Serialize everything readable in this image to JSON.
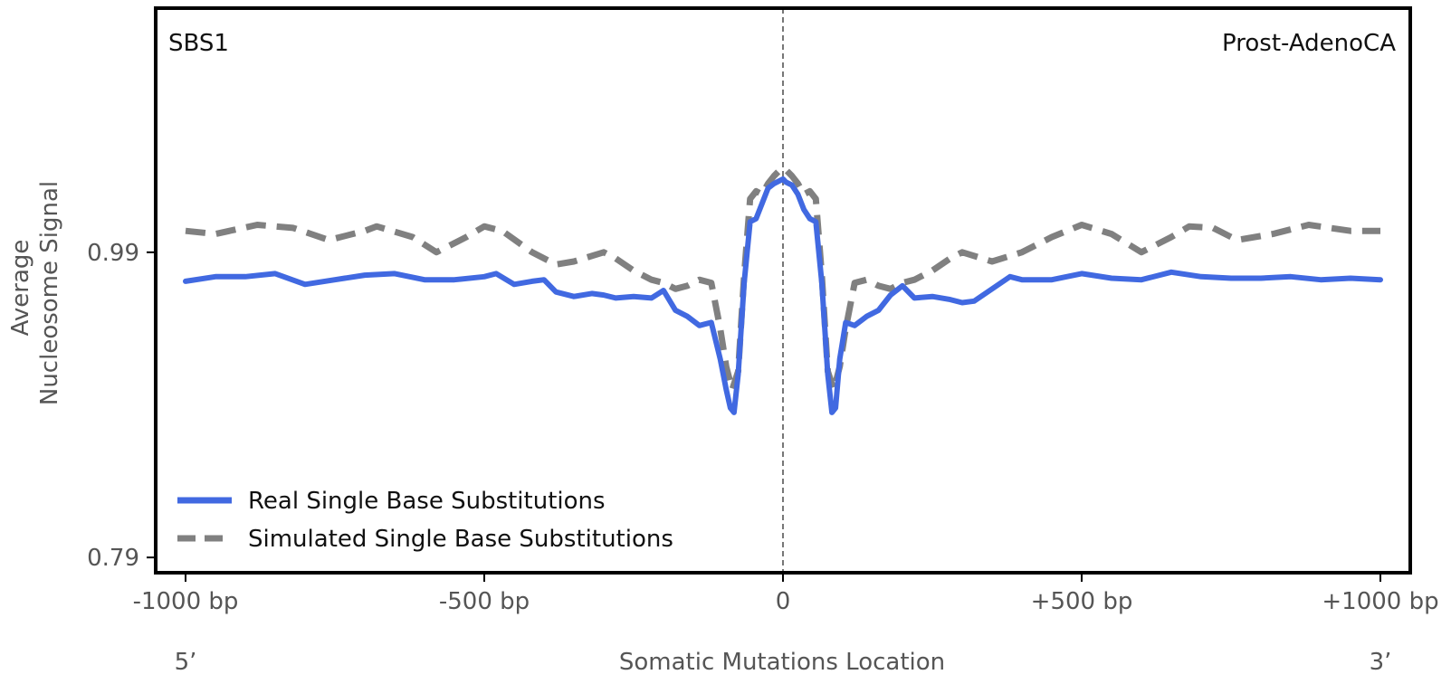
{
  "chart_data": {
    "type": "line",
    "top_left_label": "SBS1",
    "top_right_label": "Prost-AdenoCA",
    "xlabel": "Somatic Mutations Location",
    "ylabel": [
      "Average",
      "Nucleosome Signal"
    ],
    "x_end_labels": {
      "left": "5’",
      "right": "3’"
    },
    "xlim": [
      -1050,
      1050
    ],
    "ylim": [
      0.78,
      1.15
    ],
    "x_ticks": [
      {
        "value": -1000,
        "label": "-1000 bp"
      },
      {
        "value": -500,
        "label": "-500 bp"
      },
      {
        "value": 0,
        "label": "0"
      },
      {
        "value": 500,
        "label": "+500 bp"
      },
      {
        "value": 1000,
        "label": "+1000 bp"
      }
    ],
    "y_ticks": [
      {
        "value": 0.79,
        "label": "0.79"
      },
      {
        "value": 0.99,
        "label": "0.99"
      }
    ],
    "vline_x": 0,
    "legend": {
      "position": "lower-left"
    },
    "series": [
      {
        "name": "Real Single Base Substitutions",
        "color": "#4169e1",
        "style": "solid",
        "x": [
          -1000,
          -950,
          -900,
          -850,
          -800,
          -750,
          -700,
          -650,
          -600,
          -550,
          -500,
          -480,
          -450,
          -420,
          -400,
          -380,
          -350,
          -320,
          -300,
          -280,
          -250,
          -220,
          -200,
          -180,
          -160,
          -140,
          -120,
          -105,
          -95,
          -88,
          -82,
          -75,
          -65,
          -55,
          -45,
          -35,
          -25,
          -15,
          -5,
          0,
          5,
          15,
          25,
          35,
          45,
          55,
          65,
          75,
          82,
          88,
          95,
          105,
          120,
          140,
          160,
          180,
          200,
          220,
          250,
          280,
          300,
          320,
          350,
          380,
          400,
          450,
          500,
          550,
          600,
          650,
          700,
          750,
          800,
          850,
          900,
          950,
          1000
        ],
        "y": [
          0.971,
          0.974,
          0.974,
          0.976,
          0.969,
          0.972,
          0.975,
          0.976,
          0.972,
          0.972,
          0.974,
          0.976,
          0.969,
          0.971,
          0.972,
          0.964,
          0.961,
          0.963,
          0.962,
          0.96,
          0.961,
          0.96,
          0.965,
          0.952,
          0.948,
          0.942,
          0.944,
          0.92,
          0.9,
          0.888,
          0.885,
          0.91,
          0.97,
          1.01,
          1.012,
          1.022,
          1.032,
          1.035,
          1.037,
          1.038,
          1.036,
          1.034,
          1.028,
          1.018,
          1.012,
          1.01,
          0.97,
          0.91,
          0.885,
          0.888,
          0.92,
          0.944,
          0.942,
          0.948,
          0.952,
          0.962,
          0.968,
          0.96,
          0.961,
          0.959,
          0.957,
          0.958,
          0.966,
          0.974,
          0.972,
          0.972,
          0.976,
          0.973,
          0.972,
          0.977,
          0.974,
          0.973,
          0.973,
          0.974,
          0.972,
          0.973,
          0.972
        ]
      },
      {
        "name": "Simulated Single Base Substitutions",
        "color": "#808080",
        "style": "dashed",
        "x": [
          -1000,
          -950,
          -880,
          -820,
          -760,
          -700,
          -680,
          -620,
          -580,
          -530,
          -500,
          -470,
          -420,
          -380,
          -350,
          -300,
          -280,
          -250,
          -220,
          -200,
          -180,
          -160,
          -140,
          -120,
          -105,
          -95,
          -85,
          -75,
          -65,
          -55,
          -45,
          -35,
          -25,
          -15,
          -5,
          0,
          5,
          15,
          25,
          35,
          45,
          55,
          65,
          75,
          85,
          95,
          105,
          120,
          140,
          160,
          180,
          200,
          220,
          250,
          280,
          300,
          350,
          400,
          450,
          500,
          550,
          600,
          650,
          680,
          720,
          760,
          820,
          880,
          950,
          1000
        ],
        "y": [
          1.004,
          1.002,
          1.008,
          1.006,
          0.998,
          1.004,
          1.007,
          1.0,
          0.99,
          1.0,
          1.007,
          1.004,
          0.99,
          0.982,
          0.984,
          0.99,
          0.986,
          0.978,
          0.972,
          0.97,
          0.966,
          0.968,
          0.972,
          0.97,
          0.94,
          0.915,
          0.9,
          0.912,
          0.975,
          1.025,
          1.03,
          1.028,
          1.035,
          1.04,
          1.044,
          1.045,
          1.044,
          1.04,
          1.035,
          1.028,
          1.03,
          1.025,
          0.975,
          0.912,
          0.9,
          0.915,
          0.94,
          0.97,
          0.972,
          0.968,
          0.966,
          0.97,
          0.972,
          0.978,
          0.986,
          0.99,
          0.984,
          0.99,
          1.0,
          1.008,
          1.002,
          0.99,
          1.0,
          1.007,
          1.006,
          0.998,
          1.002,
          1.008,
          1.004,
          1.004
        ]
      }
    ]
  }
}
